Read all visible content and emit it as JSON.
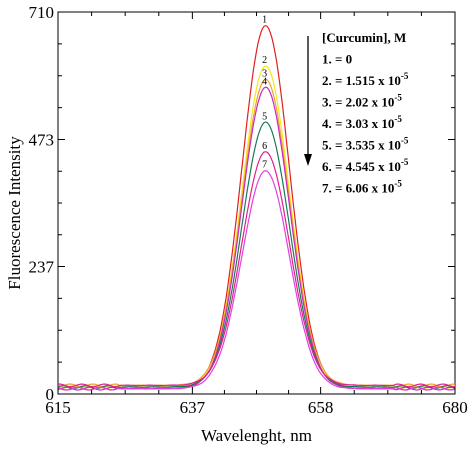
{
  "chart_data": {
    "type": "line",
    "title": "",
    "xlabel": "Wavelenght, nm",
    "ylabel": "Fluorescence Intensity",
    "xlim": [
      615,
      680
    ],
    "ylim": [
      0,
      710
    ],
    "x_ticks": [
      "615",
      "637",
      "658",
      "680"
    ],
    "y_ticks": [
      "0",
      "237",
      "473",
      "710"
    ],
    "grid": false,
    "legend": {
      "title": "[Curcumin], M",
      "placement": "top-right",
      "entries": [
        {
          "text": "1. = 0",
          "sup": ""
        },
        {
          "text": "2. = 1.515 x 10",
          "sup": "-5"
        },
        {
          "text": "3. = 2.02 x 10",
          "sup": "-5"
        },
        {
          "text": "4. = 3.03 x 10",
          "sup": "-5"
        },
        {
          "text": "5. = 3.535 x 10",
          "sup": "-5"
        },
        {
          "text": "6. = 4.545 x 10",
          "sup": "-5"
        },
        {
          "text": "7. = 6.06 x 10",
          "sup": "-5"
        }
      ]
    },
    "peak_x": 649,
    "series": [
      {
        "name": "1",
        "label": "1",
        "color": "#e0201e",
        "peak": 685
      },
      {
        "name": "2",
        "label": "2",
        "color": "#f2e81e",
        "peak": 610
      },
      {
        "name": "3",
        "label": "3",
        "color": "#f0a030",
        "peak": 585
      },
      {
        "name": "4",
        "label": "4",
        "color": "#c42cc4",
        "peak": 570
      },
      {
        "name": "5",
        "label": "5",
        "color": "#1a7a5a",
        "peak": 505
      },
      {
        "name": "6",
        "label": "6",
        "color": "#e0208c",
        "peak": 450
      },
      {
        "name": "7",
        "label": "7",
        "color": "#e040e0",
        "peak": 415
      }
    ]
  }
}
